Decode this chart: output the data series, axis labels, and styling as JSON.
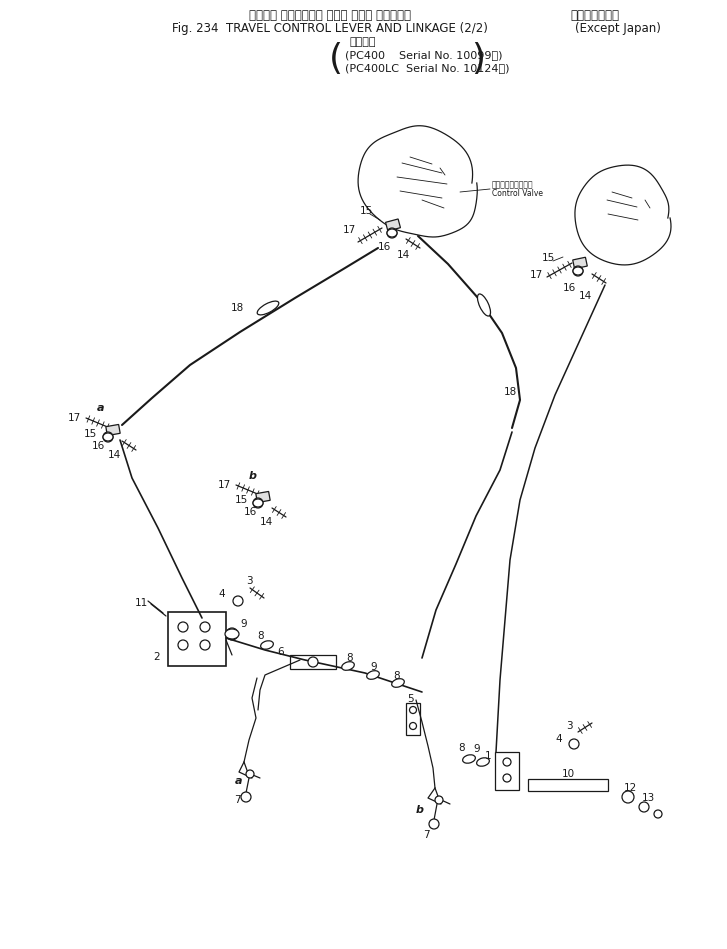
{
  "bg_color": "#ffffff",
  "line_color": "#1a1a1a",
  "title_line1_jp": "走　　行 コントロール レバー および リンケージ",
  "title_line1_suffix": "（湯　外　向）",
  "title_line2_en": "Fig. 234  TRAVEL CONTROL LEVER AND LINKAGE (2/2)",
  "title_line2_suffix": "(Except Japan)",
  "subtitle_header": "適用号機",
  "subtitle1": "(PC400    Serial No. 10099～)",
  "subtitle2": "(PC400LC  Serial No. 10124～)",
  "control_valve_jp": "コントロールバルブ",
  "control_valve_en": "Control Valve"
}
